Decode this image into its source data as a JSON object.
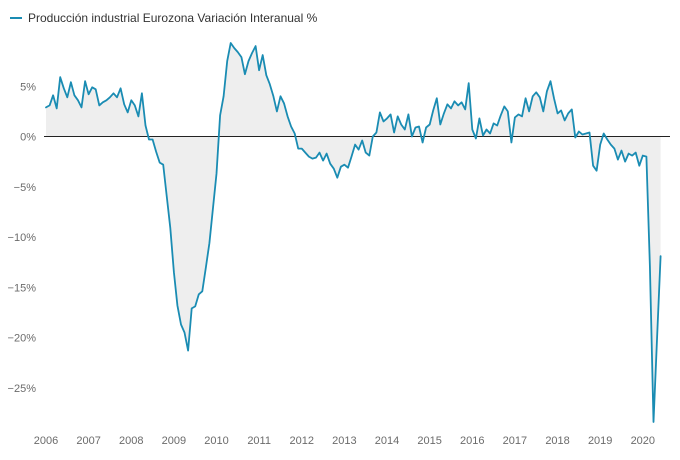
{
  "chart_data": {
    "type": "line",
    "series": [
      {
        "name": "Producción industrial Eurozona Variación Interanual %",
        "x_start": "2006-01",
        "frequency": "monthly",
        "values": [
          2.9,
          3.1,
          4.1,
          2.8,
          5.9,
          4.8,
          3.9,
          5.4,
          4.1,
          3.6,
          2.9,
          5.5,
          4.2,
          4.9,
          4.7,
          3.1,
          3.4,
          3.6,
          3.9,
          4.3,
          3.9,
          4.8,
          3.2,
          2.4,
          3.6,
          3.1,
          2.0,
          4.3,
          1.1,
          -0.3,
          -0.3,
          -1.5,
          -2.6,
          -2.8,
          -6.0,
          -9.1,
          -13.5,
          -16.8,
          -18.7,
          -19.5,
          -21.3,
          -17.1,
          -16.9,
          -15.7,
          -15.4,
          -13.0,
          -10.6,
          -7.1,
          -3.7,
          2.1,
          4.0,
          7.5,
          9.3,
          8.8,
          8.4,
          7.9,
          6.2,
          7.5,
          8.3,
          9.0,
          6.6,
          8.1,
          6.1,
          5.2,
          4.0,
          2.5,
          4.0,
          3.3,
          2.0,
          1.0,
          0.3,
          -1.2,
          -1.2,
          -1.6,
          -2.0,
          -2.2,
          -2.1,
          -1.6,
          -2.4,
          -1.7,
          -2.7,
          -3.2,
          -4.1,
          -3.0,
          -2.8,
          -3.1,
          -2.0,
          -0.8,
          -1.3,
          -0.4,
          -1.6,
          -1.9,
          0.0,
          0.4,
          2.4,
          1.5,
          1.8,
          2.2,
          0.4,
          2.0,
          1.2,
          0.7,
          2.2,
          0.0,
          0.9,
          1.0,
          -0.6,
          0.9,
          1.2,
          2.6,
          3.8,
          1.2,
          2.3,
          3.2,
          2.8,
          3.5,
          3.1,
          3.4,
          2.7,
          5.3,
          0.7,
          -0.2,
          1.8,
          0.1,
          0.7,
          0.3,
          1.3,
          1.1,
          2.1,
          3.0,
          2.5,
          -0.6,
          1.9,
          2.2,
          2.0,
          3.8,
          2.5,
          4.0,
          4.4,
          3.9,
          2.5,
          4.5,
          5.5,
          3.8,
          2.3,
          2.6,
          1.6,
          2.3,
          2.7,
          -0.1,
          0.5,
          0.2,
          0.3,
          0.4,
          -2.9,
          -3.4,
          -0.8,
          0.3,
          -0.3,
          -0.8,
          -1.2,
          -2.3,
          -1.4,
          -2.5,
          -1.7,
          -1.9,
          -1.6,
          -2.9,
          -1.9,
          -2.0,
          -12.9,
          -28.4,
          -20.2,
          -11.9
        ]
      }
    ],
    "x_ticks": [
      "2006",
      "2007",
      "2008",
      "2009",
      "2010",
      "2011",
      "2012",
      "2013",
      "2014",
      "2015",
      "2016",
      "2017",
      "2018",
      "2019",
      "2020"
    ],
    "y_ticks": [
      5,
      0,
      -5,
      -10,
      -15,
      -20,
      -25
    ],
    "y_tick_labels": [
      "5%",
      "0%",
      "−5%",
      "−10%",
      "−15%",
      "−20%",
      "−25%"
    ],
    "ylim": [
      -29,
      10
    ],
    "xlabel": "",
    "ylabel": "",
    "grid": false,
    "zero_line": true,
    "area_fill_to_zero": true,
    "legend_position": "top-left",
    "colors": {
      "line": "#1a8cb3",
      "fill": "#eeeeee",
      "zero_line": "#222222",
      "tick_text": "#6b6b6b",
      "legend_text": "#333333"
    }
  }
}
